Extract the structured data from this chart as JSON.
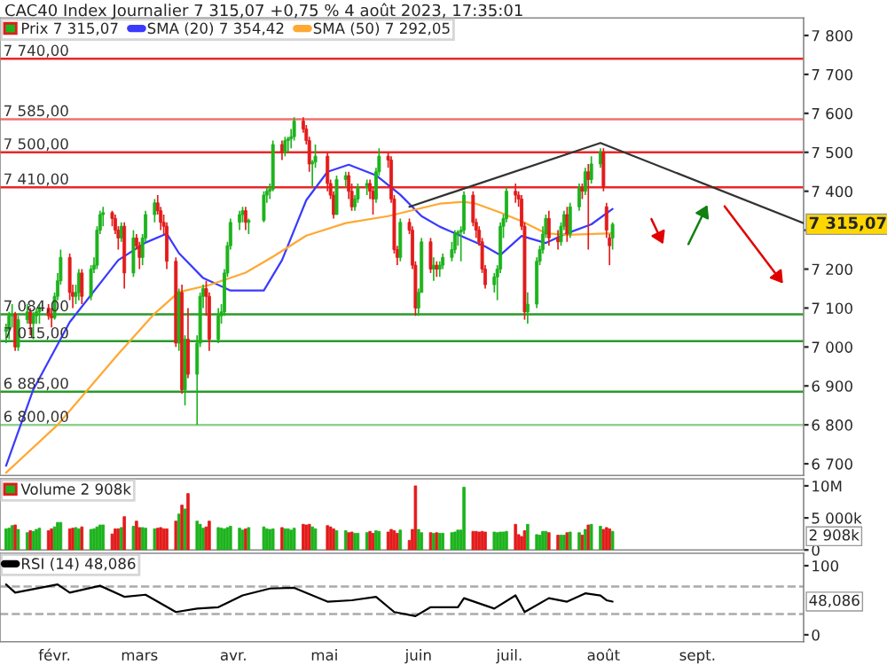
{
  "chart_data": [
    {
      "type": "candlestick",
      "title": "CAC40 Index Journalier 7 315,07 +0,75 % 4 août 2023, 17:35:01",
      "x": [
        "2023-01-16",
        "2023-01-17",
        "2023-01-18",
        "2023-01-19",
        "2023-01-20",
        "2023-01-23",
        "2023-01-24",
        "2023-01-25",
        "2023-01-26",
        "2023-01-27",
        "2023-01-30",
        "2023-01-31",
        "2023-02-01",
        "2023-02-02",
        "2023-02-03",
        "2023-02-06",
        "2023-02-07",
        "2023-02-08",
        "2023-02-09",
        "2023-02-10",
        "2023-02-13",
        "2023-02-14",
        "2023-02-15",
        "2023-02-16",
        "2023-02-17",
        "2023-02-20",
        "2023-02-21",
        "2023-02-22",
        "2023-02-23",
        "2023-02-24",
        "2023-02-27",
        "2023-02-28",
        "2023-03-01",
        "2023-03-02",
        "2023-03-03",
        "2023-03-06",
        "2023-03-07",
        "2023-03-08",
        "2023-03-09",
        "2023-03-10",
        "2023-03-13",
        "2023-03-14",
        "2023-03-15",
        "2023-03-16",
        "2023-03-17",
        "2023-03-20",
        "2023-03-21",
        "2023-03-22",
        "2023-03-23",
        "2023-03-24",
        "2023-03-27",
        "2023-03-28",
        "2023-03-29",
        "2023-03-30",
        "2023-03-31",
        "2023-04-03",
        "2023-04-04",
        "2023-04-05",
        "2023-04-06",
        "2023-04-11",
        "2023-04-12",
        "2023-04-13",
        "2023-04-14",
        "2023-04-17",
        "2023-04-18",
        "2023-04-19",
        "2023-04-20",
        "2023-04-21",
        "2023-04-24",
        "2023-04-25",
        "2023-04-26",
        "2023-04-27",
        "2023-04-28",
        "2023-05-02",
        "2023-05-03",
        "2023-05-04",
        "2023-05-05",
        "2023-05-08",
        "2023-05-09",
        "2023-05-10",
        "2023-05-11",
        "2023-05-12",
        "2023-05-15",
        "2023-05-16",
        "2023-05-17",
        "2023-05-18",
        "2023-05-19",
        "2023-05-22",
        "2023-05-23",
        "2023-05-24",
        "2023-05-25",
        "2023-05-26",
        "2023-05-29",
        "2023-05-30",
        "2023-05-31",
        "2023-06-01",
        "2023-06-02",
        "2023-06-05",
        "2023-06-06",
        "2023-06-07",
        "2023-06-08",
        "2023-06-09",
        "2023-06-12",
        "2023-06-13",
        "2023-06-14",
        "2023-06-15",
        "2023-06-16",
        "2023-06-19",
        "2023-06-20",
        "2023-06-21",
        "2023-06-22",
        "2023-06-23",
        "2023-06-26",
        "2023-06-27",
        "2023-06-28",
        "2023-06-29",
        "2023-06-30",
        "2023-07-03",
        "2023-07-04",
        "2023-07-05",
        "2023-07-06",
        "2023-07-07",
        "2023-07-10",
        "2023-07-11",
        "2023-07-12",
        "2023-07-13",
        "2023-07-14",
        "2023-07-17",
        "2023-07-18",
        "2023-07-19",
        "2023-07-20",
        "2023-07-21",
        "2023-07-24",
        "2023-07-25",
        "2023-07-26",
        "2023-07-27",
        "2023-07-28",
        "2023-07-31",
        "2023-08-01",
        "2023-08-02",
        "2023-08-03",
        "2023-08-04"
      ],
      "series": [
        {
          "type": "candlestick",
          "name": "Prix 7 315,07",
          "ohlc": [
            [
              7040,
              7060,
              7010,
              7045
            ],
            [
              7045,
              7090,
              7020,
              7080
            ],
            [
              7080,
              7110,
              7050,
              7085
            ],
            [
              7085,
              7090,
              6990,
              7000
            ],
            [
              7000,
              7080,
              6990,
              7070
            ],
            [
              7070,
              7110,
              7060,
              7090
            ],
            [
              7090,
              7100,
              7030,
              7060
            ],
            [
              7060,
              7090,
              7020,
              7080
            ],
            [
              7080,
              7100,
              7060,
              7090
            ],
            [
              7090,
              7110,
              7060,
              7100
            ],
            [
              7100,
              7110,
              7070,
              7080
            ],
            [
              7080,
              7100,
              7050,
              7075
            ],
            [
              7075,
              7140,
              7070,
              7130
            ],
            [
              7130,
              7190,
              7120,
              7170
            ],
            [
              7170,
              7250,
              7160,
              7230
            ],
            [
              7230,
              7240,
              7120,
              7140
            ],
            [
              7140,
              7160,
              7100,
              7130
            ],
            [
              7130,
              7160,
              7110,
              7140
            ],
            [
              7140,
              7200,
              7120,
              7190
            ],
            [
              7190,
              7200,
              7110,
              7130
            ],
            [
              7130,
              7210,
              7120,
              7200
            ],
            [
              7200,
              7230,
              7190,
              7210
            ],
            [
              7210,
              7310,
              7200,
              7300
            ],
            [
              7300,
              7350,
              7290,
              7340
            ],
            [
              7340,
              7360,
              7310,
              7345
            ],
            [
              7345,
              7350,
              7310,
              7330
            ],
            [
              7330,
              7340,
              7290,
              7300
            ],
            [
              7300,
              7310,
              7250,
              7280
            ],
            [
              7280,
              7320,
              7270,
              7310
            ],
            [
              7310,
              7320,
              7150,
              7190
            ],
            [
              7190,
              7300,
              7180,
              7280
            ],
            [
              7280,
              7290,
              7250,
              7260
            ],
            [
              7260,
              7270,
              7200,
              7230
            ],
            [
              7230,
              7290,
              7210,
              7280
            ],
            [
              7280,
              7350,
              7270,
              7340
            ],
            [
              7340,
              7380,
              7320,
              7370
            ],
            [
              7370,
              7390,
              7340,
              7350
            ],
            [
              7350,
              7360,
              7300,
              7320
            ],
            [
              7320,
              7340,
              7290,
              7310
            ],
            [
              7310,
              7320,
              7200,
              7220
            ],
            [
              7220,
              7230,
              7000,
              7010
            ],
            [
              7010,
              7150,
              6990,
              7140
            ],
            [
              7140,
              7160,
              6880,
              6890
            ],
            [
              6890,
              7030,
              6850,
              7020
            ],
            [
              7020,
              7100,
              6920,
              6930
            ],
            [
              6930,
              7030,
              6800,
              7010
            ],
            [
              7010,
              7140,
              7000,
              7130
            ],
            [
              7130,
              7160,
              7100,
              7150
            ],
            [
              7150,
              7170,
              7080,
              7130
            ],
            [
              7130,
              7140,
              6990,
              7020
            ],
            [
              7020,
              7100,
              7010,
              7080
            ],
            [
              7080,
              7110,
              7060,
              7090
            ],
            [
              7090,
              7200,
              7080,
              7190
            ],
            [
              7190,
              7270,
              7180,
              7260
            ],
            [
              7260,
              7330,
              7250,
              7320
            ],
            [
              7320,
              7350,
              7300,
              7340
            ],
            [
              7340,
              7360,
              7320,
              7350
            ],
            [
              7350,
              7360,
              7300,
              7320
            ],
            [
              7320,
              7330,
              7290,
              7325
            ],
            [
              7325,
              7400,
              7320,
              7390
            ],
            [
              7390,
              7410,
              7370,
              7400
            ],
            [
              7400,
              7420,
              7380,
              7405
            ],
            [
              7405,
              7530,
              7400,
              7520
            ],
            [
              7520,
              7530,
              7480,
              7500
            ],
            [
              7500,
              7540,
              7490,
              7530
            ],
            [
              7530,
              7540,
              7500,
              7535
            ],
            [
              7535,
              7560,
              7510,
              7540
            ],
            [
              7540,
              7590,
              7530,
              7580
            ],
            [
              7580,
              7590,
              7550,
              7560
            ],
            [
              7560,
              7570,
              7520,
              7530
            ],
            [
              7530,
              7540,
              7450,
              7470
            ],
            [
              7470,
              7480,
              7410,
              7475
            ],
            [
              7475,
              7520,
              7460,
              7490
            ],
            [
              7490,
              7500,
              7400,
              7420
            ],
            [
              7420,
              7430,
              7380,
              7390
            ],
            [
              7390,
              7400,
              7330,
              7340
            ],
            [
              7340,
              7440,
              7340,
              7430
            ],
            [
              7430,
              7450,
              7410,
              7440
            ],
            [
              7440,
              7450,
              7380,
              7400
            ],
            [
              7400,
              7420,
              7350,
              7360
            ],
            [
              7360,
              7390,
              7350,
              7380
            ],
            [
              7380,
              7420,
              7370,
              7410
            ],
            [
              7410,
              7430,
              7390,
              7420
            ],
            [
              7420,
              7430,
              7380,
              7400
            ],
            [
              7400,
              7410,
              7340,
              7380
            ],
            [
              7380,
              7460,
              7370,
              7450
            ],
            [
              7450,
              7510,
              7440,
              7490
            ],
            [
              7490,
              7500,
              7460,
              7480
            ],
            [
              7480,
              7490,
              7370,
              7380
            ],
            [
              7380,
              7390,
              7240,
              7250
            ],
            [
              7250,
              7260,
              7210,
              7230
            ],
            [
              7230,
              7330,
              7220,
              7320
            ],
            [
              7320,
              7330,
              7290,
              7300
            ],
            [
              7300,
              7310,
              7200,
              7210
            ],
            [
              7210,
              7220,
              7080,
              7100
            ],
            [
              7100,
              7150,
              7080,
              7140
            ],
            [
              7140,
              7280,
              7140,
              7270
            ],
            [
              7270,
              7280,
              7190,
              7200
            ],
            [
              7200,
              7230,
              7170,
              7210
            ],
            [
              7210,
              7220,
              7180,
              7200
            ],
            [
              7200,
              7220,
              7180,
              7210
            ],
            [
              7210,
              7240,
              7200,
              7230
            ],
            [
              7230,
              7270,
              7220,
              7250
            ],
            [
              7250,
              7300,
              7240,
              7290
            ],
            [
              7290,
              7300,
              7260,
              7295
            ],
            [
              7295,
              7310,
              7220,
              7300
            ],
            [
              7300,
              7400,
              7290,
              7390
            ],
            [
              7390,
              7400,
              7310,
              7320
            ],
            [
              7320,
              7330,
              7280,
              7300
            ],
            [
              7300,
              7310,
              7260,
              7270
            ],
            [
              7270,
              7280,
              7190,
              7200
            ],
            [
              7200,
              7210,
              7150,
              7160
            ],
            [
              7160,
              7190,
              7140,
              7180
            ],
            [
              7180,
              7210,
              7120,
              7200
            ],
            [
              7200,
              7320,
              7190,
              7310
            ],
            [
              7310,
              7340,
              7280,
              7330
            ],
            [
              7330,
              7410,
              7320,
              7400
            ],
            [
              7400,
              7420,
              7370,
              7390
            ],
            [
              7390,
              7400,
              7360,
              7380
            ],
            [
              7380,
              7390,
              7300,
              7310
            ],
            [
              7310,
              7320,
              7070,
              7090
            ],
            [
              7090,
              7140,
              7060,
              7110
            ],
            [
              7110,
              7230,
              7100,
              7220
            ],
            [
              7220,
              7260,
              7210,
              7250
            ],
            [
              7250,
              7310,
              7240,
              7290
            ],
            [
              7290,
              7340,
              7280,
              7330
            ],
            [
              7330,
              7350,
              7260,
              7280
            ],
            [
              7280,
              7300,
              7250,
              7270
            ],
            [
              7270,
              7320,
              7260,
              7310
            ],
            [
              7310,
              7350,
              7300,
              7340
            ],
            [
              7340,
              7360,
              7270,
              7290
            ],
            [
              7290,
              7370,
              7280,
              7360
            ],
            [
              7360,
              7420,
              7350,
              7410
            ],
            [
              7410,
              7420,
              7380,
              7400
            ],
            [
              7400,
              7460,
              7390,
              7450
            ],
            [
              7450,
              7470,
              7250,
              7430
            ],
            [
              7430,
              7490,
              7420,
              7470
            ],
            [
              7470,
              7510,
              7460,
              7500
            ],
            [
              7500,
              7510,
              7400,
              7410
            ],
            [
              7360,
              7370,
              7280,
              7300
            ],
            [
              7280,
              7290,
              7210,
              7260
            ],
            [
              7280,
              7320,
              7250,
              7315.07
            ]
          ],
          "colors": [
            "#1db31d",
            "#1db31d",
            "#1db31d",
            "#e31b1b",
            "#1db31d",
            "#1db31d",
            "#e31b1b",
            "#1db31d",
            "#1db31d",
            "#1db31d",
            "#e31b1b",
            "#e31b1b",
            "#1db31d",
            "#1db31d",
            "#1db31d",
            "#e31b1b",
            "#e31b1b",
            "#1db31d",
            "#1db31d",
            "#e31b1b",
            "#1db31d",
            "#1db31d",
            "#1db31d",
            "#1db31d",
            "#1db31d",
            "#e31b1b",
            "#e31b1b",
            "#e31b1b",
            "#1db31d",
            "#e31b1b",
            "#1db31d",
            "#e31b1b",
            "#e31b1b",
            "#1db31d",
            "#1db31d",
            "#1db31d",
            "#e31b1b",
            "#e31b1b",
            "#e31b1b",
            "#e31b1b",
            "#e31b1b",
            "#1db31d",
            "#e31b1b",
            "#1db31d",
            "#e31b1b",
            "#1db31d",
            "#1db31d",
            "#1db31d",
            "#e31b1b",
            "#e31b1b",
            "#1db31d",
            "#1db31d",
            "#1db31d",
            "#1db31d",
            "#1db31d",
            "#1db31d",
            "#1db31d",
            "#e31b1b",
            "#1db31d",
            "#1db31d",
            "#1db31d",
            "#1db31d",
            "#1db31d",
            "#e31b1b",
            "#1db31d",
            "#1db31d",
            "#1db31d",
            "#1db31d",
            "#e31b1b",
            "#e31b1b",
            "#e31b1b",
            "#1db31d",
            "#1db31d",
            "#e31b1b",
            "#e31b1b",
            "#e31b1b",
            "#1db31d",
            "#1db31d",
            "#e31b1b",
            "#e31b1b",
            "#1db31d",
            "#1db31d",
            "#1db31d",
            "#e31b1b",
            "#e31b1b",
            "#1db31d",
            "#1db31d",
            "#e31b1b",
            "#e31b1b",
            "#e31b1b",
            "#e31b1b",
            "#1db31d",
            "#e31b1b",
            "#e31b1b",
            "#e31b1b",
            "#1db31d",
            "#1db31d",
            "#e31b1b",
            "#1db31d",
            "#e31b1b",
            "#1db31d",
            "#1db31d",
            "#1db31d",
            "#1db31d",
            "#1db31d",
            "#1db31d",
            "#1db31d",
            "#e31b1b",
            "#e31b1b",
            "#e31b1b",
            "#e31b1b",
            "#e31b1b",
            "#1db31d",
            "#1db31d",
            "#1db31d",
            "#1db31d",
            "#1db31d",
            "#e31b1b",
            "#e31b1b",
            "#e31b1b",
            "#e31b1b",
            "#1db31d",
            "#1db31d",
            "#1db31d",
            "#1db31d",
            "#1db31d",
            "#e31b1b",
            "#e31b1b",
            "#1db31d",
            "#1db31d",
            "#e31b1b",
            "#1db31d",
            "#1db31d",
            "#e31b1b",
            "#1db31d",
            "#e31b1b",
            "#1db31d",
            "#1db31d",
            "#e31b1b",
            "#e31b1b",
            "#e31b1b",
            "#1db31d"
          ]
        },
        {
          "type": "line",
          "name": "SMA (20) 7 354,42",
          "color": "#3a3aff",
          "x": [
            "2023-01-16",
            "2023-01-25",
            "2023-02-06",
            "2023-02-22",
            "2023-03-03",
            "2023-03-10",
            "2023-03-14",
            "2023-03-22",
            "2023-03-31",
            "2023-04-11",
            "2023-04-17",
            "2023-04-25",
            "2023-05-02",
            "2023-05-09",
            "2023-05-18",
            "2023-05-26",
            "2023-06-02",
            "2023-06-08",
            "2023-06-23",
            "2023-06-28",
            "2023-07-05",
            "2023-07-13",
            "2023-07-20",
            "2023-07-28",
            "2023-08-04"
          ],
          "values": [
            6695,
            6891,
            7064,
            7223,
            7268,
            7291,
            7241,
            7177,
            7145,
            7145,
            7223,
            7377,
            7450,
            7468,
            7441,
            7391,
            7336,
            7309,
            7258,
            7236,
            7285,
            7267,
            7292,
            7315,
            7354.42
          ]
        },
        {
          "type": "line",
          "name": "SMA (50) 7 292,05",
          "color": "#ffa832",
          "x": [
            "2023-01-16",
            "2023-02-02",
            "2023-02-22",
            "2023-03-06",
            "2023-03-14",
            "2023-03-24",
            "2023-04-05",
            "2023-04-14",
            "2023-04-25",
            "2023-05-08",
            "2023-05-22",
            "2023-06-08",
            "2023-06-16",
            "2023-06-20",
            "2023-06-28",
            "2023-07-05",
            "2023-07-13",
            "2023-07-20",
            "2023-08-04"
          ],
          "values": [
            6677,
            6800,
            6982,
            7086,
            7141,
            7159,
            7191,
            7232,
            7286,
            7318,
            7336,
            7368,
            7373,
            7368,
            7345,
            7323,
            7292,
            7288,
            7292.05
          ]
        },
        {
          "type": "line",
          "color": "#333333",
          "x": [
            "2023-05-29",
            "2023-07-31",
            "2023-10-06"
          ],
          "values": [
            7360,
            7524,
            7318
          ]
        }
      ],
      "ref_lines": [
        {
          "axis": "y",
          "value": 7740,
          "label": "7 740,00",
          "color": "#e82828"
        },
        {
          "axis": "y",
          "value": 7585,
          "label": "7 585,00",
          "color": "#f07070"
        },
        {
          "axis": "y",
          "value": 7500,
          "label": "7 500,00",
          "color": "#e82828"
        },
        {
          "axis": "y",
          "value": 7410,
          "label": "7 410,00",
          "color": "#e82828"
        },
        {
          "axis": "y",
          "value": 7084,
          "label": "7 084,00",
          "color": "#2a9a2a"
        },
        {
          "axis": "y",
          "value": 7015,
          "label": "7 015,00",
          "color": "#2a9a2a"
        },
        {
          "axis": "y",
          "value": 6885,
          "label": "6 885,00",
          "color": "#2a9a2a"
        },
        {
          "axis": "y",
          "value": 6800,
          "label": "6 800,00",
          "color": "#90d090"
        }
      ],
      "annotations": [
        "7 315,07"
      ],
      "xlim": [
        "2023-01-14",
        "2023-10-06"
      ],
      "ylim": [
        6670,
        7845
      ],
      "yticks": [
        {
          "value": 6700,
          "label": "6 700"
        },
        {
          "value": 6800,
          "label": "6 800"
        },
        {
          "value": 6900,
          "label": "6 900"
        },
        {
          "value": 7000,
          "label": "7 000"
        },
        {
          "value": 7100,
          "label": "7 100"
        },
        {
          "value": 7200,
          "label": "7 200"
        },
        {
          "value": 7300,
          "label": null
        },
        {
          "value": 7400,
          "label": "7 400"
        },
        {
          "value": 7500,
          "label": "7 500"
        },
        {
          "value": 7600,
          "label": "7 600"
        },
        {
          "value": 7700,
          "label": "7 700"
        },
        {
          "value": 7800,
          "label": "7 800"
        }
      ],
      "tick_labels": "y",
      "legend": "top left"
    },
    {
      "type": "bar",
      "x": [
        "2023-01-16",
        "2023-01-17",
        "2023-01-18",
        "2023-01-19",
        "2023-01-20",
        "2023-01-23",
        "2023-01-24",
        "2023-01-25",
        "2023-01-26",
        "2023-01-27",
        "2023-01-30",
        "2023-01-31",
        "2023-02-01",
        "2023-02-02",
        "2023-02-03",
        "2023-02-06",
        "2023-02-07",
        "2023-02-08",
        "2023-02-09",
        "2023-02-10",
        "2023-02-13",
        "2023-02-14",
        "2023-02-15",
        "2023-02-16",
        "2023-02-17",
        "2023-02-20",
        "2023-02-21",
        "2023-02-22",
        "2023-02-23",
        "2023-02-24",
        "2023-02-27",
        "2023-02-28",
        "2023-03-01",
        "2023-03-02",
        "2023-03-03",
        "2023-03-06",
        "2023-03-07",
        "2023-03-08",
        "2023-03-09",
        "2023-03-10",
        "2023-03-13",
        "2023-03-14",
        "2023-03-15",
        "2023-03-16",
        "2023-03-17",
        "2023-03-20",
        "2023-03-21",
        "2023-03-22",
        "2023-03-23",
        "2023-03-24",
        "2023-03-27",
        "2023-03-28",
        "2023-03-29",
        "2023-03-30",
        "2023-03-31",
        "2023-04-03",
        "2023-04-04",
        "2023-04-05",
        "2023-04-06",
        "2023-04-11",
        "2023-04-12",
        "2023-04-13",
        "2023-04-14",
        "2023-04-17",
        "2023-04-18",
        "2023-04-19",
        "2023-04-20",
        "2023-04-21",
        "2023-04-24",
        "2023-04-25",
        "2023-04-26",
        "2023-04-27",
        "2023-04-28",
        "2023-05-02",
        "2023-05-03",
        "2023-05-04",
        "2023-05-05",
        "2023-05-08",
        "2023-05-09",
        "2023-05-10",
        "2023-05-11",
        "2023-05-12",
        "2023-05-15",
        "2023-05-16",
        "2023-05-17",
        "2023-05-18",
        "2023-05-19",
        "2023-05-22",
        "2023-05-23",
        "2023-05-24",
        "2023-05-25",
        "2023-05-26",
        "2023-05-29",
        "2023-05-30",
        "2023-05-31",
        "2023-06-01",
        "2023-06-02",
        "2023-06-05",
        "2023-06-06",
        "2023-06-07",
        "2023-06-08",
        "2023-06-09",
        "2023-06-12",
        "2023-06-13",
        "2023-06-14",
        "2023-06-15",
        "2023-06-16",
        "2023-06-19",
        "2023-06-20",
        "2023-06-21",
        "2023-06-22",
        "2023-06-23",
        "2023-06-26",
        "2023-06-27",
        "2023-06-28",
        "2023-06-29",
        "2023-06-30",
        "2023-07-03",
        "2023-07-04",
        "2023-07-05",
        "2023-07-06",
        "2023-07-07",
        "2023-07-10",
        "2023-07-11",
        "2023-07-12",
        "2023-07-13",
        "2023-07-14",
        "2023-07-17",
        "2023-07-18",
        "2023-07-19",
        "2023-07-20",
        "2023-07-21",
        "2023-07-24",
        "2023-07-25",
        "2023-07-26",
        "2023-07-27",
        "2023-07-28",
        "2023-07-31",
        "2023-08-01",
        "2023-08-02",
        "2023-08-03",
        "2023-08-04"
      ],
      "series": [
        {
          "name": "Volume 2 908k",
          "values": [
            3300000,
            3400000,
            3800000,
            3900000,
            3200000,
            2700000,
            3000000,
            2900000,
            3200000,
            3400000,
            3000000,
            3300000,
            3600000,
            4300000,
            4300000,
            3300000,
            3400000,
            3500000,
            3300000,
            3600000,
            3200000,
            3300000,
            3600000,
            3900000,
            3900000,
            2500000,
            3300000,
            3300000,
            3500000,
            5200000,
            3700000,
            4500000,
            3500000,
            3500000,
            3400000,
            3300000,
            3400000,
            3500000,
            3300000,
            3300000,
            4500000,
            5600000,
            7000000,
            6400000,
            8800000,
            4500000,
            4000000,
            3400000,
            3600000,
            4500000,
            3500000,
            3400000,
            3300000,
            3500000,
            3700000,
            3400000,
            3100000,
            3300000,
            3500000,
            3600000,
            3300000,
            3200000,
            3300000,
            3500000,
            3300000,
            3300000,
            3100000,
            3400000,
            4000000,
            3900000,
            4000000,
            3600000,
            3300000,
            3800000,
            3600000,
            3300000,
            3000000,
            3000000,
            2700000,
            2800000,
            2600000,
            2600000,
            2700000,
            2900000,
            2600000,
            3000000,
            2900000,
            2800000,
            3200000,
            3000000,
            2600000,
            3100000,
            1500000,
            3200000,
            10000000,
            3200000,
            2700000,
            2700000,
            2600000,
            2700000,
            2600000,
            2600000,
            2700000,
            2800000,
            3100000,
            3100000,
            9800000,
            2900000,
            2900000,
            2800000,
            2900000,
            2800000,
            2800000,
            2700000,
            2800000,
            2800000,
            2900000,
            4000000,
            2400000,
            2100000,
            3000000,
            4000000,
            2400000,
            2300000,
            2900000,
            2900000,
            2700000,
            2300000,
            2300000,
            2300000,
            2700000,
            2800000,
            2700000,
            2300000,
            3200000,
            3900000,
            4000000,
            3700000,
            3200000,
            3500000,
            3300000,
            2908000
          ],
          "colors": [
            "#1db31d",
            "#1db31d",
            "#1db31d",
            "#e31b1b",
            "#1db31d",
            "#1db31d",
            "#e31b1b",
            "#1db31d",
            "#1db31d",
            "#1db31d",
            "#e31b1b",
            "#e31b1b",
            "#1db31d",
            "#1db31d",
            "#1db31d",
            "#e31b1b",
            "#e31b1b",
            "#1db31d",
            "#1db31d",
            "#e31b1b",
            "#1db31d",
            "#1db31d",
            "#1db31d",
            "#1db31d",
            "#1db31d",
            "#e31b1b",
            "#e31b1b",
            "#e31b1b",
            "#1db31d",
            "#e31b1b",
            "#1db31d",
            "#e31b1b",
            "#e31b1b",
            "#1db31d",
            "#1db31d",
            "#1db31d",
            "#e31b1b",
            "#e31b1b",
            "#e31b1b",
            "#e31b1b",
            "#e31b1b",
            "#1db31d",
            "#e31b1b",
            "#1db31d",
            "#e31b1b",
            "#1db31d",
            "#1db31d",
            "#1db31d",
            "#e31b1b",
            "#e31b1b",
            "#1db31d",
            "#1db31d",
            "#1db31d",
            "#1db31d",
            "#1db31d",
            "#1db31d",
            "#1db31d",
            "#e31b1b",
            "#1db31d",
            "#1db31d",
            "#1db31d",
            "#1db31d",
            "#1db31d",
            "#e31b1b",
            "#1db31d",
            "#1db31d",
            "#1db31d",
            "#1db31d",
            "#e31b1b",
            "#e31b1b",
            "#e31b1b",
            "#1db31d",
            "#1db31d",
            "#e31b1b",
            "#e31b1b",
            "#e31b1b",
            "#1db31d",
            "#1db31d",
            "#e31b1b",
            "#e31b1b",
            "#1db31d",
            "#1db31d",
            "#1db31d",
            "#e31b1b",
            "#e31b1b",
            "#1db31d",
            "#1db31d",
            "#e31b1b",
            "#e31b1b",
            "#e31b1b",
            "#e31b1b",
            "#1db31d",
            "#e31b1b",
            "#e31b1b",
            "#e31b1b",
            "#1db31d",
            "#1db31d",
            "#e31b1b",
            "#1db31d",
            "#e31b1b",
            "#1db31d",
            "#1db31d",
            "#1db31d",
            "#1db31d",
            "#1db31d",
            "#1db31d",
            "#1db31d",
            "#e31b1b",
            "#e31b1b",
            "#e31b1b",
            "#e31b1b",
            "#e31b1b",
            "#1db31d",
            "#1db31d",
            "#1db31d",
            "#1db31d",
            "#1db31d",
            "#e31b1b",
            "#e31b1b",
            "#e31b1b",
            "#e31b1b",
            "#1db31d",
            "#1db31d",
            "#1db31d",
            "#1db31d",
            "#1db31d",
            "#e31b1b",
            "#e31b1b",
            "#1db31d",
            "#1db31d",
            "#e31b1b",
            "#1db31d",
            "#1db31d",
            "#e31b1b",
            "#1db31d",
            "#e31b1b",
            "#1db31d",
            "#1db31d",
            "#e31b1b",
            "#e31b1b",
            "#e31b1b",
            "#1db31d"
          ]
        }
      ],
      "annotations": [
        "2 908k"
      ],
      "xlim": [
        "2023-01-14",
        "2023-10-06"
      ],
      "ylim": [
        0,
        11100000
      ],
      "yticks": [
        {
          "value": 0,
          "label": "0"
        },
        {
          "value": 5000000,
          "label": "5 000k"
        },
        {
          "value": 10000000,
          "label": "10M"
        }
      ],
      "tick_labels": "y",
      "legend": "top left"
    },
    {
      "type": "line",
      "series": [
        {
          "name": "RSI (14) 48,086",
          "color": "#000000",
          "x": [
            "2023-01-16",
            "2023-01-19",
            "2023-02-02",
            "2023-02-06",
            "2023-02-16",
            "2023-02-24",
            "2023-03-03",
            "2023-03-13",
            "2023-03-20",
            "2023-03-27",
            "2023-04-04",
            "2023-04-13",
            "2023-04-21",
            "2023-05-02",
            "2023-05-10",
            "2023-05-18",
            "2023-05-24",
            "2023-05-31",
            "2023-06-05",
            "2023-06-14",
            "2023-06-16",
            "2023-06-26",
            "2023-07-03",
            "2023-07-06",
            "2023-07-14",
            "2023-07-20",
            "2023-07-26",
            "2023-07-31",
            "2023-08-02",
            "2023-08-04"
          ],
          "values": [
            73,
            61,
            73,
            61,
            71,
            55,
            58,
            33,
            38,
            40,
            57,
            67,
            68,
            48,
            50,
            55,
            33,
            27,
            40,
            40,
            53,
            38,
            57,
            33,
            53,
            48,
            60,
            57,
            50,
            48.086
          ]
        }
      ],
      "ref_lines": [
        {
          "axis": "y",
          "value": 70,
          "color": "#aaaaaa",
          "line_style": "dashed"
        },
        {
          "axis": "y",
          "value": 30,
          "color": "#aaaaaa",
          "line_style": "dashed"
        }
      ],
      "annotations": [
        "48,086"
      ],
      "xlim": [
        "2023-01-14",
        "2023-10-06"
      ],
      "ylim": [
        -10,
        118
      ],
      "yticks": [
        0,
        100
      ],
      "xticks": [
        {
          "value": "2023-02-01",
          "label": "févr."
        },
        {
          "value": "2023-03-01",
          "label": "mars"
        },
        {
          "value": "2023-04-01",
          "label": "avr."
        },
        {
          "value": "2023-05-01",
          "label": "mai"
        },
        {
          "value": "2023-06-01",
          "label": "juin"
        },
        {
          "value": "2023-07-01",
          "label": "juil."
        },
        {
          "value": "2023-08-01",
          "label": "août"
        },
        {
          "value": "2023-09-01",
          "label": "sept."
        }
      ],
      "legend": "top left"
    }
  ]
}
